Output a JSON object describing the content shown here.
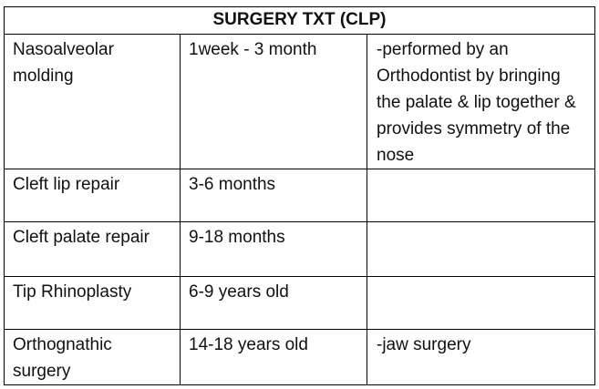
{
  "table": {
    "title": "SURGERY TXT (CLP)",
    "rows": [
      {
        "procedure": "Nasoalveolar molding",
        "timing": "1week -  3 month",
        "notes": "-performed by an Orthodontist by bringing the palate & lip together & provides symmetry of the nose"
      },
      {
        "procedure": "Cleft lip repair",
        "timing": "3-6 months",
        "notes": ""
      },
      {
        "procedure": "Cleft palate repair",
        "timing": "9-18 months",
        "notes": ""
      },
      {
        "procedure": "Tip Rhinoplasty",
        "timing": "6-9 years old",
        "notes": ""
      },
      {
        "procedure": "Orthognathic surgery",
        "timing": "14-18 years old",
        "notes": "-jaw surgery"
      }
    ]
  }
}
